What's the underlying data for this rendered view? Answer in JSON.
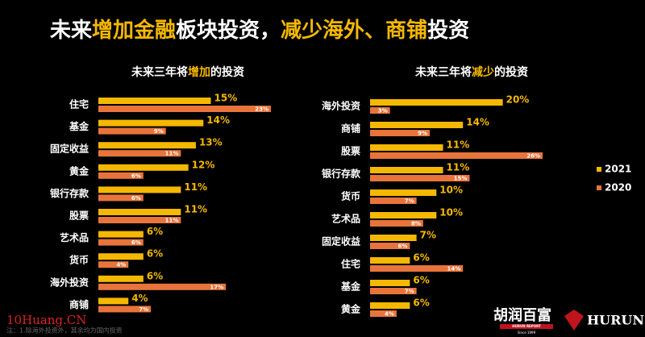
{
  "header": {
    "title_parts": [
      "未来",
      "增加金融",
      "板块投资，",
      "减少海外、商铺",
      "投资"
    ]
  },
  "chart_data": [
    {
      "type": "bar",
      "orientation": "horizontal",
      "subtitle_parts": [
        "未来三年将",
        "增加",
        "的投资"
      ],
      "categories": [
        "住宅",
        "基金",
        "固定收益",
        "黄金",
        "银行存款",
        "股票",
        "艺术品",
        "货币",
        "海外投资",
        "商铺"
      ],
      "series": [
        {
          "name": "2021",
          "color": "#f5b800",
          "values": [
            15,
            14,
            13,
            12,
            11,
            11,
            6,
            6,
            6,
            4
          ],
          "value_labels": [
            "15%",
            "14%",
            "13%",
            "12%",
            "11%",
            "11%",
            "6%",
            "6%",
            "6%",
            "4%"
          ]
        },
        {
          "name": "2020",
          "color": "#e8743b",
          "values": [
            23,
            9,
            11,
            6,
            6,
            11,
            6,
            4,
            17,
            7
          ],
          "value_labels": [
            "23%",
            "9%",
            "11%",
            "6%",
            "6%",
            "11%",
            "6%",
            "4%",
            "17%",
            "7%"
          ]
        }
      ]
    },
    {
      "type": "bar",
      "orientation": "horizontal",
      "subtitle_parts": [
        "未来三年将",
        "减少",
        "的投资"
      ],
      "categories": [
        "海外投资",
        "商铺",
        "股票",
        "银行存款",
        "货币",
        "艺术品",
        "固定收益",
        "住宅",
        "基金",
        "黄金"
      ],
      "series": [
        {
          "color": "#f5b800",
          "values": [
            20,
            14,
            11,
            11,
            10,
            10,
            7,
            6,
            6,
            6
          ],
          "value_labels": [
            "20%",
            "14%",
            "11%",
            "11%",
            "10%",
            "10%",
            "7%",
            "6%",
            "6%",
            "6%"
          ]
        },
        {
          "color": "#e8743b",
          "values": [
            3,
            9,
            26,
            15,
            7,
            8,
            6,
            14,
            7,
            4
          ],
          "value_labels": [
            "3%",
            "9%",
            "26%",
            "15%",
            "7%",
            "8%",
            "6%",
            "14%",
            "7%",
            "4%"
          ]
        }
      ]
    }
  ],
  "footnote": "注：1.除海外投资外，其余均为国内投资",
  "logos": {
    "cn": "胡润百富",
    "report": "HURUN REPORT",
    "since": "Since 1999",
    "hurun": "HURUN"
  },
  "watermark": "10Huang.CN"
}
